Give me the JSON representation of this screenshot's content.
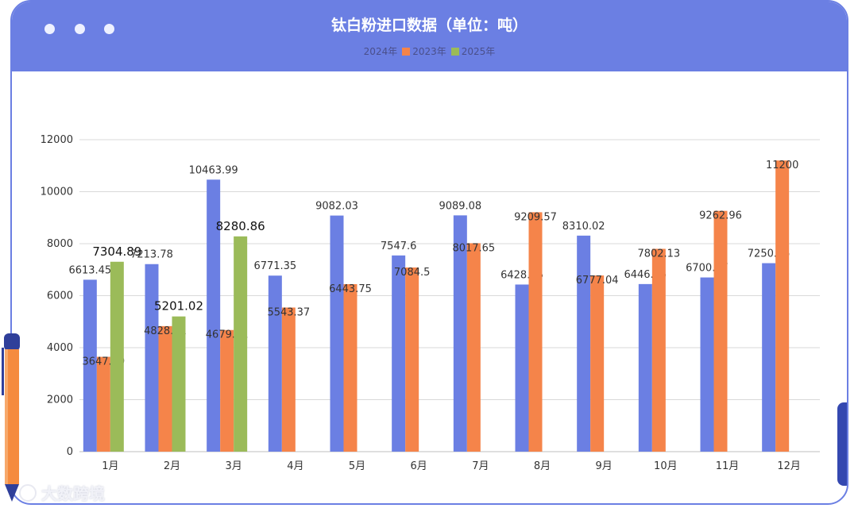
{
  "window": {
    "title": "钛白粉进口数据（单位：吨）",
    "watermark": "大数跨境"
  },
  "colors": {
    "header": "#6b7fe3",
    "s2024": "#6b7fe3",
    "s2023": "#f5844a",
    "s2025": "#9bbb59"
  },
  "chart_data": {
    "type": "bar",
    "title": "钛白粉进口数据（单位：吨）",
    "categories": [
      "1月",
      "2月",
      "3月",
      "4月",
      "5月",
      "6月",
      "7月",
      "8月",
      "9月",
      "10月",
      "11月",
      "12月"
    ],
    "series": [
      {
        "name": "2024年",
        "values": [
          6613.45,
          7213.78,
          10463.99,
          6771.35,
          9082.03,
          7547.6,
          9089.08,
          6428.66,
          8310.02,
          6446.65,
          6700.87,
          7250.35
        ]
      },
      {
        "name": "2023年",
        "values": [
          3647.19,
          4828.61,
          4679.41,
          5543.37,
          6443.75,
          7084.5,
          8017.65,
          9209.57,
          6777.04,
          7802.13,
          9262.96,
          11200
        ]
      },
      {
        "name": "2025年",
        "values": [
          7304.89,
          5201.02,
          8280.86,
          null,
          null,
          null,
          null,
          null,
          null,
          null,
          null,
          null
        ]
      }
    ],
    "value_labels": [
      [
        "6613.45",
        "7213.78",
        "10463.99",
        "6771.35",
        "9082.03",
        "7547.6",
        "9089.08",
        "6428.66",
        "8310.02",
        "6446.65",
        "6700.87",
        "7250.35"
      ],
      [
        "3647.19",
        "4828.61",
        "4679.41",
        "5543.37",
        "6443.75",
        "7084.5",
        "8017.65",
        "9209.57",
        "6777.04",
        "7802.13",
        "9262.96",
        "11200"
      ],
      [
        "7304.89",
        "5201.02",
        "8280.86"
      ]
    ],
    "yticks": [
      "0",
      "2000",
      "4000",
      "6000",
      "8000",
      "10000",
      "12000"
    ],
    "ylim": [
      0,
      12000
    ],
    "grid": true,
    "legend_position": "top-center"
  }
}
